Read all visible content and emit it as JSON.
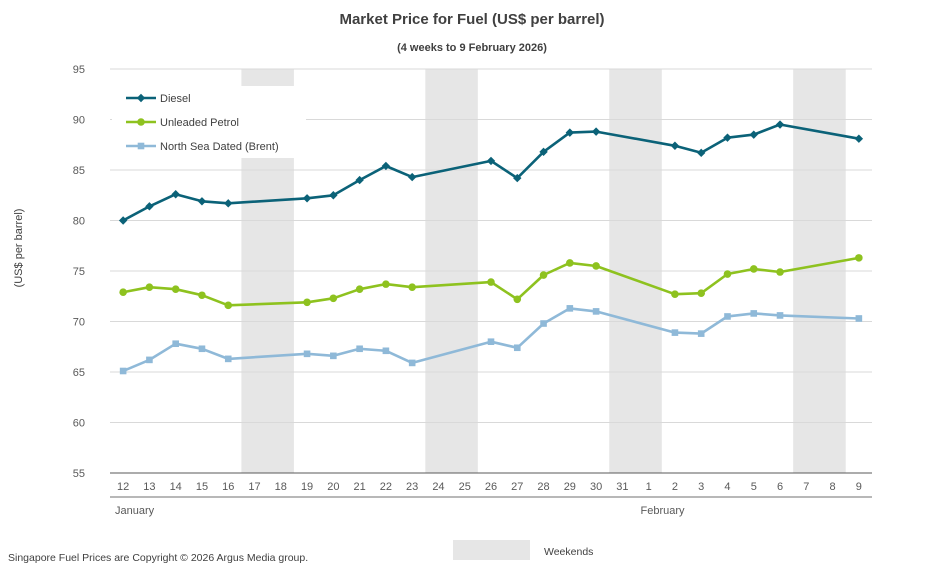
{
  "chart_data": {
    "type": "line",
    "title": "Market Price for Fuel (US$ per barrel)",
    "subtitle": "(4 weeks to 9 February 2026)",
    "ylabel": "(US$ per barrel)",
    "xlabel": "",
    "ylim": [
      55,
      95
    ],
    "yticks": [
      55,
      60,
      65,
      70,
      75,
      80,
      85,
      90,
      95
    ],
    "grid": true,
    "legend_position": "top-left",
    "categories": [
      "12",
      "13",
      "14",
      "15",
      "16",
      "17",
      "18",
      "19",
      "20",
      "21",
      "22",
      "23",
      "24",
      "25",
      "26",
      "27",
      "28",
      "29",
      "30",
      "31",
      "1",
      "2",
      "3",
      "4",
      "5",
      "6",
      "7",
      "8",
      "9"
    ],
    "month_labels": [
      {
        "label": "January",
        "start_category": "12"
      },
      {
        "label": "February",
        "start_category": "1"
      }
    ],
    "weekend_label": "Weekends",
    "weekends": [
      [
        "17",
        "18"
      ],
      [
        "24",
        "25"
      ],
      [
        "31",
        "1"
      ],
      [
        "7",
        "8"
      ]
    ],
    "series": [
      {
        "name": "Diesel",
        "color": "#0b6278",
        "marker": "diamond",
        "values": [
          80.0,
          81.4,
          82.6,
          81.9,
          81.7,
          null,
          null,
          82.2,
          82.5,
          84.0,
          85.4,
          84.3,
          null,
          null,
          85.9,
          84.2,
          86.8,
          88.7,
          88.8,
          null,
          null,
          87.4,
          86.7,
          88.2,
          88.5,
          89.5,
          null,
          null,
          88.1
        ]
      },
      {
        "name": "Unleaded Petrol",
        "color": "#8ec21f",
        "marker": "circle",
        "values": [
          72.9,
          73.4,
          73.2,
          72.6,
          71.6,
          null,
          null,
          71.9,
          72.3,
          73.2,
          73.7,
          73.4,
          null,
          null,
          73.9,
          72.2,
          74.6,
          75.8,
          75.5,
          null,
          null,
          72.7,
          72.8,
          74.7,
          75.2,
          74.9,
          null,
          null,
          76.3
        ]
      },
      {
        "name": "North Sea Dated (Brent)",
        "color": "#8fb9d8",
        "marker": "square",
        "values": [
          65.1,
          66.2,
          67.8,
          67.3,
          66.3,
          null,
          null,
          66.8,
          66.6,
          67.3,
          67.1,
          65.9,
          null,
          null,
          68.0,
          67.4,
          69.8,
          71.3,
          71.0,
          null,
          null,
          68.9,
          68.8,
          70.5,
          70.8,
          70.6,
          null,
          null,
          70.3
        ]
      }
    ]
  },
  "footer": {
    "copyright": "Singapore Fuel Prices are Copyright © 2026 Argus Media group."
  },
  "colors": {
    "weekend_band": "#e6e6e6",
    "gridline": "#d9d9d9",
    "axis": "#595959"
  }
}
